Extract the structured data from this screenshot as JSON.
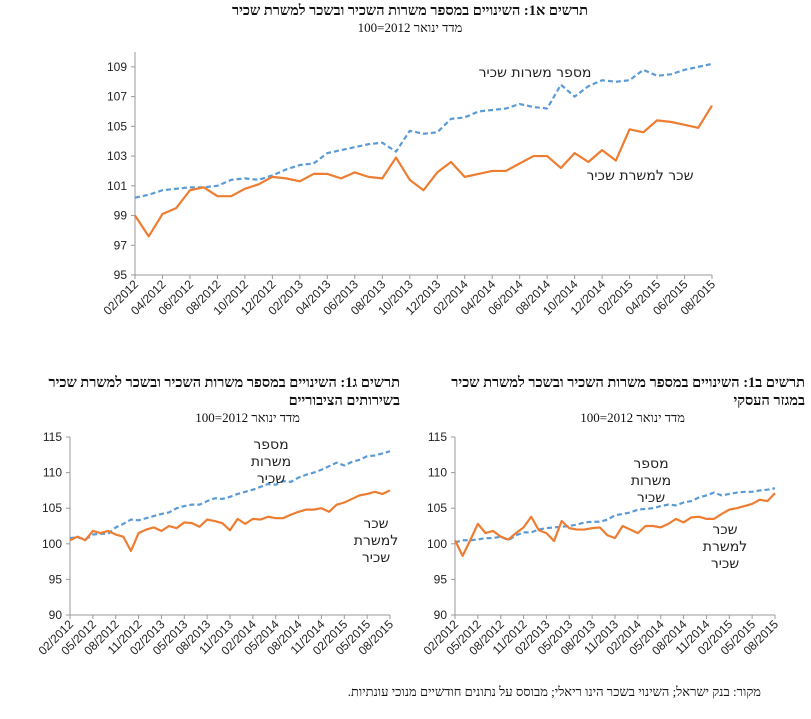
{
  "chart_data": [
    {
      "type": "line",
      "title": "תרשים א1: השינויים במספר משרות השכיר ובשכר למשרת שכיר",
      "subtitle": "מדד ינואר 2012=100",
      "categories": [
        "02/2012",
        null,
        "04/2012",
        null,
        "06/2012",
        null,
        "08/2012",
        null,
        "10/2012",
        null,
        "12/2012",
        null,
        "02/2013",
        null,
        "04/2013",
        null,
        "06/2013",
        null,
        "08/2013",
        null,
        "10/2013",
        null,
        "12/2013",
        null,
        "02/2014",
        null,
        "04/2014",
        null,
        "06/2014",
        null,
        "08/2014",
        null,
        "10/2014",
        null,
        "12/2014",
        null,
        "02/2015",
        null,
        "04/2015",
        null,
        "06/2015",
        null,
        "08/2015"
      ],
      "series": [
        {
          "name": "מספר משרות שכיר",
          "color": "#5b9bd5",
          "style": "dashed",
          "values": [
            100.2,
            100.4,
            100.7,
            100.8,
            100.9,
            100.9,
            101.0,
            101.4,
            101.5,
            101.4,
            101.7,
            102.1,
            102.4,
            102.5,
            103.2,
            103.4,
            103.6,
            103.8,
            103.9,
            103.3,
            104.7,
            104.5,
            104.6,
            105.5,
            105.6,
            106.0,
            106.1,
            106.2,
            106.5,
            106.3,
            106.2,
            107.8,
            107.0,
            107.7,
            108.1,
            108.0,
            108.1,
            108.8,
            108.4,
            108.5,
            108.8,
            109.0,
            109.2
          ]
        },
        {
          "name": "שכר למשרת שכיר",
          "color": "#ed7d31",
          "style": "solid",
          "values": [
            99.0,
            97.6,
            99.1,
            99.5,
            100.7,
            100.9,
            100.3,
            100.3,
            100.8,
            101.1,
            101.6,
            101.5,
            101.3,
            101.8,
            101.8,
            101.5,
            101.9,
            101.6,
            101.5,
            102.9,
            101.4,
            100.7,
            101.9,
            102.6,
            101.6,
            101.8,
            102.0,
            102.0,
            102.5,
            103.0,
            103.0,
            102.2,
            103.2,
            102.6,
            103.4,
            102.7,
            104.8,
            104.6,
            105.4,
            105.3,
            105.1,
            104.9,
            106.4
          ]
        }
      ],
      "ylim": [
        95,
        110
      ],
      "yticks": [
        95,
        97,
        99,
        101,
        103,
        105,
        107,
        109
      ]
    },
    {
      "type": "line",
      "title": "תרשים ב1: השינויים במספר משרות השכיר ובשכר למשרת שכיר במגזר העסקי",
      "subtitle": "מדד ינואר 2012=100",
      "categories": [
        "02/2012",
        null,
        null,
        "05/2012",
        null,
        null,
        "08/2012",
        null,
        null,
        "11/2012",
        null,
        null,
        "02/2013",
        null,
        null,
        "05/2013",
        null,
        null,
        "08/2013",
        null,
        null,
        "11/2013",
        null,
        null,
        "02/2014",
        null,
        null,
        "05/2014",
        null,
        null,
        "08/2014",
        null,
        null,
        "11/2014",
        null,
        null,
        "02/2015",
        null,
        null,
        "05/2015",
        null,
        null,
        "08/2015"
      ],
      "series": [
        {
          "name": "מספר משרות שכיר",
          "color": "#5b9bd5",
          "style": "dashed",
          "values": [
            100.2,
            100.5,
            100.5,
            100.6,
            100.8,
            100.8,
            101.0,
            100.5,
            101.2,
            101.6,
            101.6,
            102.0,
            102.2,
            102.3,
            102.4,
            102.5,
            102.7,
            103.0,
            103.1,
            103.1,
            103.4,
            104.0,
            104.2,
            104.4,
            104.8,
            104.9,
            105.0,
            105.3,
            105.5,
            105.4,
            105.8,
            106.0,
            106.5,
            106.8,
            107.2,
            106.8,
            107.0,
            107.2,
            107.3,
            107.3,
            107.5,
            107.6,
            107.8
          ]
        },
        {
          "name": "שכר למשרת שכיר",
          "color": "#ed7d31",
          "style": "solid",
          "values": [
            100.5,
            98.3,
            100.5,
            102.8,
            101.5,
            101.8,
            101.0,
            100.6,
            101.5,
            102.3,
            103.8,
            101.9,
            101.5,
            100.4,
            103.2,
            102.2,
            102.0,
            102.0,
            102.2,
            102.3,
            101.2,
            100.8,
            102.5,
            102.0,
            101.5,
            102.5,
            102.5,
            102.3,
            102.8,
            103.5,
            103.0,
            103.7,
            103.8,
            103.5,
            103.5,
            104.2,
            104.8,
            105.0,
            105.3,
            105.6,
            106.2,
            106.0,
            107.1
          ]
        }
      ],
      "ylim": [
        90,
        115
      ],
      "yticks": [
        90,
        95,
        100,
        105,
        110,
        115
      ]
    },
    {
      "type": "line",
      "title": "תרשים ג1: השינויים במספר משרות השכיר ובשכר למשרת שכיר בשירותים הציבוריים",
      "subtitle": "מדד ינואר 2012=100",
      "categories": [
        "02/2012",
        null,
        null,
        "05/2012",
        null,
        null,
        "08/2012",
        null,
        null,
        "11/2012",
        null,
        null,
        "02/2013",
        null,
        null,
        "05/2013",
        null,
        null,
        "08/2013",
        null,
        null,
        "11/2013",
        null,
        null,
        "02/2014",
        null,
        null,
        "05/2014",
        null,
        null,
        "08/2014",
        null,
        null,
        "11/2014",
        null,
        null,
        "02/2015",
        null,
        null,
        "05/2015",
        null,
        null,
        "08/2015"
      ],
      "series": [
        {
          "name": "מספר משרות שכיר",
          "color": "#5b9bd5",
          "style": "dashed",
          "values": [
            100.8,
            100.9,
            100.6,
            101.3,
            101.4,
            101.4,
            102.3,
            102.8,
            103.4,
            103.3,
            103.6,
            103.9,
            104.2,
            104.4,
            105.0,
            105.3,
            105.5,
            105.5,
            106.0,
            106.4,
            106.3,
            106.6,
            107.0,
            107.3,
            107.6,
            108.0,
            108.4,
            108.3,
            108.8,
            108.7,
            109.3,
            109.7,
            110.0,
            110.4,
            110.9,
            111.4,
            111.0,
            111.5,
            111.8,
            112.3,
            112.4,
            112.7,
            113.0
          ]
        },
        {
          "name": "שכר למשרת שכיר",
          "color": "#ed7d31",
          "style": "solid",
          "values": [
            100.5,
            101.0,
            100.5,
            101.8,
            101.5,
            101.8,
            101.3,
            101.0,
            99.0,
            101.5,
            102.0,
            102.3,
            101.8,
            102.5,
            102.2,
            103.0,
            102.9,
            102.4,
            103.4,
            103.2,
            102.9,
            101.9,
            103.5,
            102.8,
            103.5,
            103.4,
            103.8,
            103.6,
            103.6,
            104.1,
            104.5,
            104.8,
            104.8,
            105.0,
            104.5,
            105.5,
            105.8,
            106.3,
            106.8,
            107.0,
            107.3,
            107.0,
            107.5
          ]
        }
      ],
      "ylim": [
        90,
        115
      ],
      "yticks": [
        90,
        95,
        100,
        105,
        110,
        115
      ]
    }
  ],
  "source": "מקור: בנק ישראל; השינוי בשכר הינו ריאלי; מבוסס על נתונים חודשיים מנוכי עונתיות."
}
